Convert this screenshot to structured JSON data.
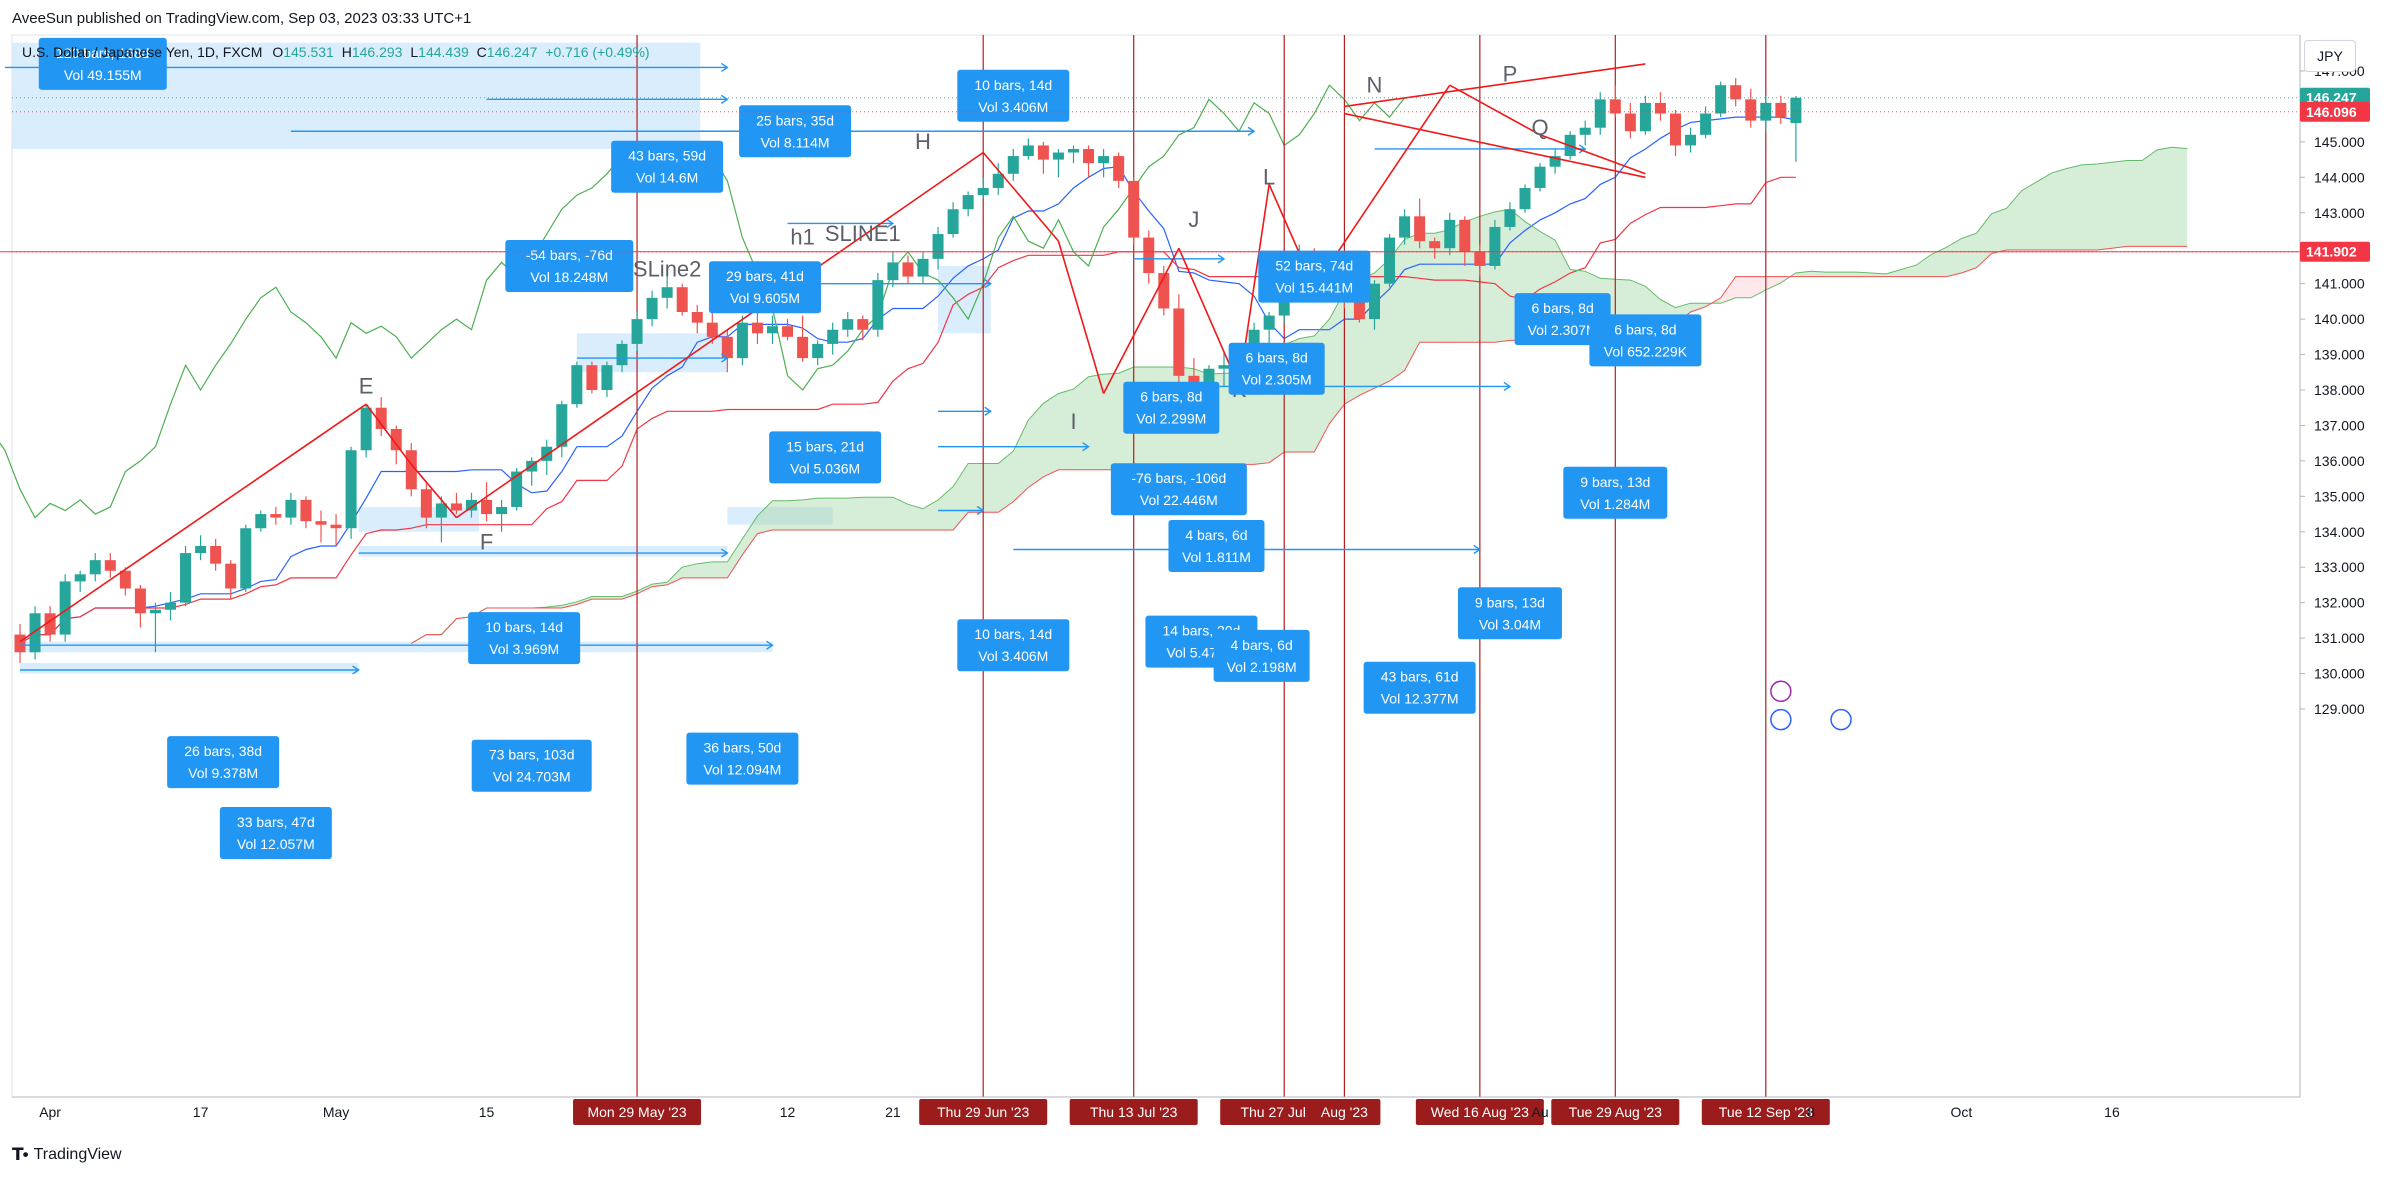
{
  "header": {
    "publisher": "AveeSun published on TradingView.com, Sep 03, 2023 03:33 UTC+1"
  },
  "symbol": {
    "name": "U.S. Dollar / Japanese Yen, 1D, FXCM",
    "open_label": "O",
    "open": "145.531",
    "high_label": "H",
    "high": "146.293",
    "low_label": "L",
    "low": "144.439",
    "close_label": "C",
    "close": "146.247",
    "change": "+0.716 (+0.49%)"
  },
  "currency_button": "JPY",
  "footer": {
    "brand": "TradingView"
  },
  "colors": {
    "up": "#26a69a",
    "down": "#ef5350",
    "tenkan": "#2962ff",
    "kijun": "#f23645",
    "chikou": "#4caf50",
    "span_green": "#a5d6a7",
    "span_red": "#ffcdd2",
    "tool_blue": "#2196f3",
    "vertical_line": "#b71c1c",
    "red_line": "#f01818"
  },
  "chart_data": {
    "type": "candlestick",
    "title": "",
    "ylim": [
      128.8,
      147.8
    ],
    "y_ticks": [
      "147.000",
      "146.000",
      "145.000",
      "144.000",
      "143.000",
      "142.000",
      "141.000",
      "140.000",
      "139.000",
      "138.000",
      "137.000",
      "136.000",
      "135.000",
      "134.000",
      "133.000",
      "132.000",
      "131.000",
      "130.000",
      "129.000"
    ],
    "x_ticks": [
      {
        "label": "Apr",
        "bar": 2
      },
      {
        "label": "17",
        "bar": 12
      },
      {
        "label": "May",
        "bar": 21
      },
      {
        "label": "15",
        "bar": 31
      },
      {
        "label": "Mon 29 May '23",
        "bar": 41,
        "highlight": true
      },
      {
        "label": "12",
        "bar": 51
      },
      {
        "label": "21",
        "bar": 58
      },
      {
        "label": "Thu 29 Jun '23",
        "bar": 64,
        "highlight": true
      },
      {
        "label": "Thu 13 Jul '23",
        "bar": 74,
        "highlight": true
      },
      {
        "label": "Thu 27 Jul '23",
        "bar": 84,
        "highlight": true
      },
      {
        "label": "Aug '23",
        "bar": 88,
        "highlight": true
      },
      {
        "label": "Wed 16 Aug '23",
        "bar": 97,
        "highlight": true
      },
      {
        "label": "Au",
        "bar": 101
      },
      {
        "label": "Tue 29 Aug '23",
        "bar": 106,
        "highlight": true
      },
      {
        "label": "Tue 12 Sep '23",
        "bar": 116,
        "highlight": true
      },
      {
        "label": "8",
        "bar": 119
      },
      {
        "label": "Oct",
        "bar": 129
      },
      {
        "label": "16",
        "bar": 139
      }
    ],
    "price_labels": [
      {
        "value": "146.247",
        "price": 146.247,
        "color": "#26a69a"
      },
      {
        "value": "146.096",
        "price": 145.85,
        "color": "#f23645"
      },
      {
        "value": "141.902",
        "price": 141.902,
        "color": "#f23645"
      }
    ],
    "candles": [
      [
        131.1,
        131.4,
        130.3,
        130.6
      ],
      [
        130.6,
        131.9,
        130.4,
        131.7
      ],
      [
        131.7,
        131.9,
        130.9,
        131.1
      ],
      [
        131.1,
        132.8,
        130.9,
        132.6
      ],
      [
        132.6,
        132.9,
        132.3,
        132.8
      ],
      [
        132.8,
        133.4,
        132.6,
        133.2
      ],
      [
        133.2,
        133.4,
        132.7,
        132.9
      ],
      [
        132.9,
        133.0,
        132.2,
        132.4
      ],
      [
        132.4,
        132.5,
        131.3,
        131.7
      ],
      [
        131.7,
        132.0,
        130.6,
        131.8
      ],
      [
        131.8,
        132.3,
        131.5,
        132.0
      ],
      [
        132.0,
        133.6,
        131.9,
        133.4
      ],
      [
        133.4,
        133.9,
        133.2,
        133.6
      ],
      [
        133.6,
        133.8,
        132.9,
        133.1
      ],
      [
        133.1,
        133.2,
        132.1,
        132.4
      ],
      [
        132.4,
        134.2,
        132.3,
        134.1
      ],
      [
        134.1,
        134.6,
        134.0,
        134.5
      ],
      [
        134.5,
        134.7,
        134.2,
        134.4
      ],
      [
        134.4,
        135.1,
        134.2,
        134.9
      ],
      [
        134.9,
        135.0,
        134.1,
        134.3
      ],
      [
        134.3,
        134.6,
        133.7,
        134.2
      ],
      [
        134.2,
        134.5,
        133.6,
        134.1
      ],
      [
        134.1,
        136.4,
        133.8,
        136.3
      ],
      [
        136.3,
        137.6,
        136.1,
        137.5
      ],
      [
        137.5,
        137.8,
        136.7,
        136.9
      ],
      [
        136.9,
        137.0,
        135.9,
        136.3
      ],
      [
        136.3,
        136.5,
        135.0,
        135.2
      ],
      [
        135.2,
        135.4,
        134.1,
        134.4
      ],
      [
        134.4,
        135.0,
        133.7,
        134.8
      ],
      [
        134.8,
        135.1,
        134.5,
        134.6
      ],
      [
        134.6,
        135.1,
        134.4,
        134.9
      ],
      [
        134.9,
        135.4,
        134.3,
        134.5
      ],
      [
        134.5,
        134.9,
        134.0,
        134.7
      ],
      [
        134.7,
        135.8,
        134.6,
        135.7
      ],
      [
        135.7,
        136.1,
        135.3,
        136.0
      ],
      [
        136.0,
        136.6,
        135.6,
        136.4
      ],
      [
        136.4,
        137.7,
        136.1,
        137.6
      ],
      [
        137.6,
        138.8,
        137.5,
        138.7
      ],
      [
        138.7,
        138.8,
        137.9,
        138.0
      ],
      [
        138.0,
        138.8,
        137.8,
        138.7
      ],
      [
        138.7,
        139.4,
        138.5,
        139.3
      ],
      [
        139.3,
        140.2,
        139.1,
        140.0
      ],
      [
        140.0,
        140.8,
        139.8,
        140.6
      ],
      [
        140.6,
        141.2,
        140.3,
        140.9
      ],
      [
        140.9,
        141.0,
        140.1,
        140.2
      ],
      [
        140.2,
        140.4,
        139.6,
        139.9
      ],
      [
        139.9,
        140.2,
        139.3,
        139.5
      ],
      [
        139.5,
        139.7,
        138.5,
        138.9
      ],
      [
        138.9,
        140.1,
        138.7,
        139.9
      ],
      [
        139.9,
        140.2,
        139.3,
        139.6
      ],
      [
        139.6,
        140.1,
        139.3,
        139.8
      ],
      [
        139.8,
        140.0,
        139.4,
        139.5
      ],
      [
        139.5,
        140.1,
        138.8,
        138.9
      ],
      [
        138.9,
        139.4,
        138.7,
        139.3
      ],
      [
        139.3,
        139.9,
        139.0,
        139.7
      ],
      [
        139.7,
        140.2,
        139.5,
        140.0
      ],
      [
        140.0,
        140.1,
        139.4,
        139.7
      ],
      [
        139.7,
        141.3,
        139.5,
        141.1
      ],
      [
        141.1,
        141.9,
        140.9,
        141.6
      ],
      [
        141.6,
        141.8,
        141.0,
        141.2
      ],
      [
        141.2,
        141.9,
        141.0,
        141.7
      ],
      [
        141.7,
        142.6,
        141.4,
        142.4
      ],
      [
        142.4,
        143.3,
        142.3,
        143.1
      ],
      [
        143.1,
        143.6,
        142.9,
        143.5
      ],
      [
        143.5,
        144.0,
        143.4,
        143.7
      ],
      [
        143.7,
        144.4,
        143.5,
        144.1
      ],
      [
        144.1,
        144.8,
        143.9,
        144.6
      ],
      [
        144.6,
        145.1,
        144.5,
        144.9
      ],
      [
        144.9,
        145.0,
        144.1,
        144.5
      ],
      [
        144.5,
        144.8,
        144.0,
        144.7
      ],
      [
        144.7,
        144.9,
        144.4,
        144.8
      ],
      [
        144.8,
        144.9,
        144.0,
        144.4
      ],
      [
        144.4,
        144.8,
        144.0,
        144.6
      ],
      [
        144.6,
        144.7,
        143.7,
        143.9
      ],
      [
        143.9,
        144.0,
        142.1,
        142.3
      ],
      [
        142.3,
        142.5,
        141.0,
        141.3
      ],
      [
        141.3,
        141.5,
        140.1,
        140.3
      ],
      [
        140.3,
        140.7,
        137.8,
        138.4
      ],
      [
        138.4,
        138.9,
        137.7,
        138.0
      ],
      [
        138.0,
        138.7,
        137.3,
        138.6
      ],
      [
        138.6,
        139.1,
        138.1,
        138.7
      ],
      [
        138.7,
        139.3,
        137.9,
        139.1
      ],
      [
        139.1,
        139.9,
        138.8,
        139.7
      ],
      [
        139.7,
        140.2,
        139.3,
        140.1
      ],
      [
        140.1,
        141.6,
        139.9,
        141.4
      ],
      [
        141.4,
        142.1,
        141.2,
        141.9
      ],
      [
        141.9,
        142.0,
        141.1,
        141.3
      ],
      [
        141.3,
        141.5,
        140.8,
        141.1
      ],
      [
        141.1,
        141.3,
        140.3,
        140.6
      ],
      [
        140.6,
        140.7,
        139.9,
        140.0
      ],
      [
        140.0,
        141.1,
        139.7,
        141.0
      ],
      [
        141.0,
        142.4,
        140.9,
        142.3
      ],
      [
        142.3,
        143.1,
        142.1,
        142.9
      ],
      [
        142.9,
        143.4,
        142.0,
        142.2
      ],
      [
        142.2,
        142.3,
        141.7,
        142.0
      ],
      [
        142.0,
        143.0,
        141.8,
        142.8
      ],
      [
        142.8,
        142.9,
        141.5,
        141.9
      ],
      [
        141.9,
        142.1,
        141.2,
        141.5
      ],
      [
        141.5,
        142.8,
        141.4,
        142.6
      ],
      [
        142.6,
        143.3,
        142.5,
        143.1
      ],
      [
        143.1,
        143.8,
        143.0,
        143.7
      ],
      [
        143.7,
        144.4,
        143.6,
        144.3
      ],
      [
        144.3,
        144.8,
        144.1,
        144.6
      ],
      [
        144.6,
        145.3,
        144.5,
        145.2
      ],
      [
        145.2,
        145.6,
        144.9,
        145.4
      ],
      [
        145.4,
        146.4,
        145.2,
        146.2
      ],
      [
        146.2,
        146.6,
        145.7,
        145.8
      ],
      [
        145.8,
        146.1,
        145.1,
        145.3
      ],
      [
        145.3,
        146.3,
        145.2,
        146.1
      ],
      [
        146.1,
        146.4,
        145.6,
        145.8
      ],
      [
        145.8,
        145.9,
        144.6,
        144.9
      ],
      [
        144.9,
        145.4,
        144.7,
        145.2
      ],
      [
        145.2,
        146.0,
        145.1,
        145.8
      ],
      [
        145.8,
        146.7,
        145.7,
        146.6
      ],
      [
        146.6,
        146.8,
        146.0,
        146.2
      ],
      [
        146.2,
        146.5,
        145.4,
        145.6
      ],
      [
        145.6,
        146.3,
        145.3,
        146.1
      ],
      [
        146.1,
        146.3,
        145.5,
        145.7
      ],
      [
        145.531,
        146.293,
        144.439,
        146.247
      ]
    ],
    "wave_labels": [
      {
        "text": "E",
        "bar": 23,
        "price": 137.9
      },
      {
        "text": "F",
        "bar": 31,
        "price": 133.5
      },
      {
        "text": "G",
        "bar": 40,
        "price": 141.3
      },
      {
        "text": "h1",
        "bar": 52,
        "price": 142.1
      },
      {
        "text": "H",
        "bar": 60,
        "price": 144.8
      },
      {
        "text": "I",
        "bar": 70,
        "price": 136.9
      },
      {
        "text": "J",
        "bar": 78,
        "price": 142.6
      },
      {
        "text": "K",
        "bar": 81,
        "price": 137.8
      },
      {
        "text": "L",
        "bar": 83,
        "price": 143.8
      },
      {
        "text": "M",
        "bar": 87,
        "price": 141.2
      },
      {
        "text": "N",
        "bar": 90,
        "price": 146.4
      },
      {
        "text": "P",
        "bar": 99,
        "price": 146.7
      },
      {
        "text": "Q",
        "bar": 101,
        "price": 145.2
      }
    ],
    "trendline_labels": [
      {
        "text": "SLine2",
        "bar": 43,
        "price": 141.2
      },
      {
        "text": "SLINE1",
        "bar": 56,
        "price": 142.2
      }
    ],
    "stat_boxes": [
      {
        "bars": "120 bars, 168d",
        "vol": "Vol 49.155M",
        "bar": 5.5,
        "price": 147.2
      },
      {
        "bars": "10 bars, 14d",
        "vol": "Vol 3.406M",
        "bar": 66,
        "price": 146.3
      },
      {
        "bars": "25 bars, 35d",
        "vol": "Vol 8.114M",
        "bar": 51.5,
        "price": 145.3
      },
      {
        "bars": "43 bars, 59d",
        "vol": "Vol 14.6M",
        "bar": 43,
        "price": 144.3
      },
      {
        "bars": "-54 bars, -76d",
        "vol": "Vol 18.248M",
        "bar": 36.5,
        "price": 141.5
      },
      {
        "bars": "29 bars, 41d",
        "vol": "Vol 9.605M",
        "bar": 49.5,
        "price": 140.9
      },
      {
        "bars": "52 bars, 74d",
        "vol": "Vol 15.441M",
        "bar": 86,
        "price": 141.2
      },
      {
        "bars": "6 bars, 8d",
        "vol": "Vol 2.307M",
        "bar": 102.5,
        "price": 140.0
      },
      {
        "bars": "6 bars, 8d",
        "vol": "Vol 652.229K",
        "bar": 108,
        "price": 139.4
      },
      {
        "bars": "6 bars, 8d",
        "vol": "Vol 2.305M",
        "bar": 83.5,
        "price": 138.6
      },
      {
        "bars": "6 bars, 8d",
        "vol": "Vol 2.299M",
        "bar": 76.5,
        "price": 137.5
      },
      {
        "bars": "15 bars, 21d",
        "vol": "Vol 5.036M",
        "bar": 53.5,
        "price": 136.1
      },
      {
        "bars": "-76 bars, -106d",
        "vol": "Vol 22.446M",
        "bar": 77,
        "price": 135.2
      },
      {
        "bars": "9 bars, 13d",
        "vol": "Vol 1.284M",
        "bar": 106,
        "price": 135.1
      },
      {
        "bars": "4 bars, 6d",
        "vol": "Vol 1.811M",
        "bar": 79.5,
        "price": 133.6
      },
      {
        "bars": "10 bars, 14d",
        "vol": "Vol 3.969M",
        "bar": 33.5,
        "price": 131.0
      },
      {
        "bars": "9 bars, 13d",
        "vol": "Vol 3.04M",
        "bar": 99,
        "price": 131.7
      },
      {
        "bars": "10 bars, 14d",
        "vol": "Vol 3.406M",
        "bar": 66,
        "price": 130.8
      },
      {
        "bars": "14 bars, 20d",
        "vol": "Vol 5.471M",
        "bar": 78.5,
        "price": 130.9
      },
      {
        "bars": "4 bars, 6d",
        "vol": "Vol 2.198M",
        "bar": 82.5,
        "price": 130.5
      },
      {
        "bars": "43 bars, 61d",
        "vol": "Vol 12.377M",
        "bar": 93,
        "price": 129.6
      },
      {
        "bars": "26 bars, 38d",
        "vol": "Vol 9.378M",
        "bar": 13.5,
        "price": 127.5
      },
      {
        "bars": "73 bars, 103d",
        "vol": "Vol 24.703M",
        "bar": 34,
        "price": 127.4
      },
      {
        "bars": "36 bars, 50d",
        "vol": "Vol 12.094M",
        "bar": 48,
        "price": 127.6
      },
      {
        "bars": "33 bars, 47d",
        "vol": "Vol 12.057M",
        "bar": 17,
        "price": 125.5
      }
    ]
  }
}
